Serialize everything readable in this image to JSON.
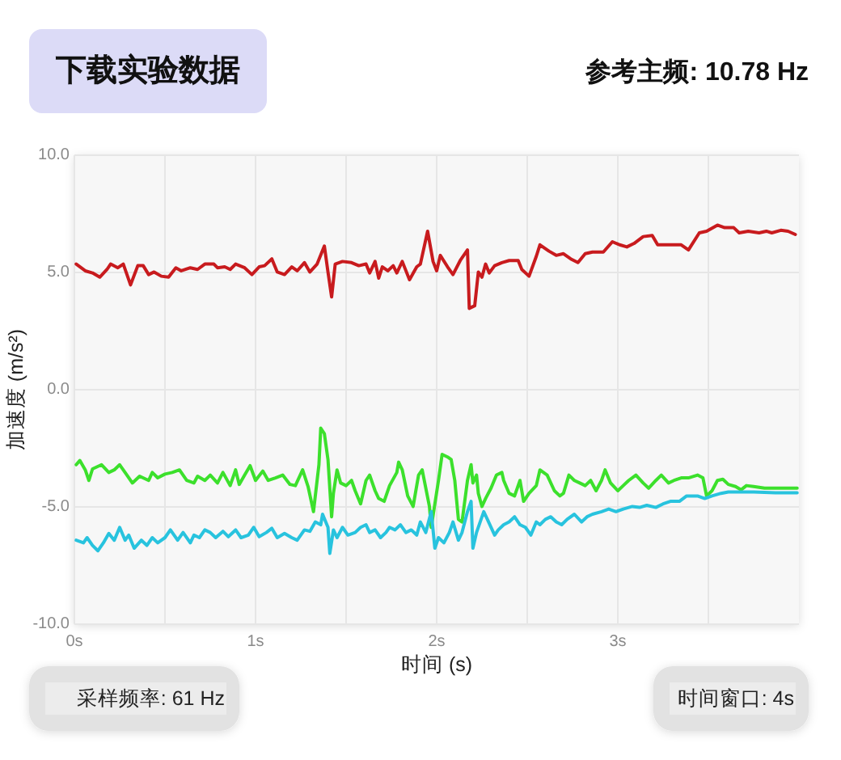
{
  "chart_data": {
    "type": "line",
    "xlabel": "时间 (s)",
    "ylabel": "加速度 (m/s²)",
    "annotations": [
      "下载实验数据",
      "参考主频: 10.78 Hz",
      "采样频率: 61 Hz",
      "时间窗口: 4s"
    ],
    "xlim": [
      0,
      4
    ],
    "xticks": [
      {
        "value": 0,
        "label": "0s"
      },
      {
        "value": 0.5,
        "label": null
      },
      {
        "value": 1,
        "label": "1s"
      },
      {
        "value": 1.5,
        "label": null
      },
      {
        "value": 2,
        "label": "2s"
      },
      {
        "value": 2.5,
        "label": null
      },
      {
        "value": 3,
        "label": "3s"
      },
      {
        "value": 3.5,
        "label": null
      }
    ],
    "ylim": [
      -10,
      10
    ],
    "yticks": [
      {
        "value": -10,
        "label": "-10.0"
      },
      {
        "value": -5,
        "label": "-5.0"
      },
      {
        "value": 0,
        "label": "0.0"
      },
      {
        "value": 5,
        "label": "5.0"
      },
      {
        "value": 10,
        "label": "10.0"
      }
    ],
    "grid": true,
    "marker": "none",
    "line_style": "solid",
    "series": [
      {
        "color": "#c81b1e",
        "x": [
          0.01,
          0.06,
          0.1,
          0.14,
          0.18,
          0.2,
          0.24,
          0.27,
          0.31,
          0.35,
          0.38,
          0.41,
          0.44,
          0.48,
          0.52,
          0.56,
          0.59,
          0.64,
          0.68,
          0.72,
          0.77,
          0.79,
          0.83,
          0.86,
          0.89,
          0.94,
          0.98,
          1.02,
          1.05,
          1.09,
          1.12,
          1.16,
          1.2,
          1.23,
          1.27,
          1.3,
          1.34,
          1.38,
          1.4,
          1.42,
          1.44,
          1.48,
          1.53,
          1.57,
          1.61,
          1.63,
          1.66,
          1.68,
          1.7,
          1.73,
          1.76,
          1.78,
          1.81,
          1.85,
          1.89,
          1.91,
          1.95,
          1.98,
          2.0,
          2.02,
          2.06,
          2.09,
          2.13,
          2.17,
          2.18,
          2.21,
          2.23,
          2.25,
          2.27,
          2.29,
          2.32,
          2.36,
          2.4,
          2.45,
          2.47,
          2.51,
          2.55,
          2.57,
          2.62,
          2.66,
          2.7,
          2.74,
          2.78,
          2.82,
          2.86,
          2.92,
          2.97,
          3.01,
          3.05,
          3.09,
          3.14,
          3.19,
          3.22,
          3.28,
          3.35,
          3.39,
          3.45,
          3.49,
          3.55,
          3.59,
          3.64,
          3.67,
          3.72,
          3.78,
          3.82,
          3.85,
          3.9,
          3.94,
          3.98
        ],
        "values": [
          5.36,
          5.07,
          4.98,
          4.8,
          5.13,
          5.36,
          5.2,
          5.36,
          4.47,
          5.29,
          5.29,
          4.91,
          5.02,
          4.84,
          4.8,
          5.2,
          5.07,
          5.2,
          5.13,
          5.36,
          5.36,
          5.2,
          5.24,
          5.13,
          5.36,
          5.2,
          4.91,
          5.24,
          5.29,
          5.58,
          5.02,
          4.91,
          5.24,
          5.07,
          5.42,
          5.02,
          5.36,
          6.13,
          5.02,
          3.96,
          5.36,
          5.47,
          5.42,
          5.29,
          5.36,
          4.98,
          5.47,
          4.76,
          5.24,
          5.07,
          5.29,
          4.98,
          5.47,
          4.69,
          5.24,
          5.36,
          6.76,
          5.47,
          5.07,
          5.73,
          5.24,
          4.91,
          5.51,
          5.96,
          3.47,
          3.58,
          5.02,
          4.8,
          5.36,
          4.98,
          5.29,
          5.42,
          5.51,
          5.51,
          5.13,
          4.84,
          5.69,
          6.18,
          5.91,
          5.73,
          5.8,
          5.58,
          5.42,
          5.8,
          5.87,
          5.87,
          6.31,
          6.18,
          6.09,
          6.24,
          6.53,
          6.58,
          6.18,
          6.18,
          6.18,
          5.96,
          6.69,
          6.76,
          7.02,
          6.91,
          6.91,
          6.69,
          6.76,
          6.69,
          6.76,
          6.69,
          6.8,
          6.76,
          6.62
        ]
      },
      {
        "color": "#3ce02c",
        "x": [
          0.01,
          0.03,
          0.06,
          0.08,
          0.1,
          0.15,
          0.19,
          0.22,
          0.25,
          0.29,
          0.32,
          0.36,
          0.41,
          0.43,
          0.46,
          0.5,
          0.54,
          0.58,
          0.62,
          0.66,
          0.68,
          0.72,
          0.75,
          0.79,
          0.82,
          0.86,
          0.89,
          0.91,
          0.94,
          0.97,
          1.0,
          1.04,
          1.07,
          1.11,
          1.15,
          1.19,
          1.22,
          1.26,
          1.29,
          1.32,
          1.35,
          1.36,
          1.38,
          1.4,
          1.42,
          1.43,
          1.45,
          1.47,
          1.5,
          1.53,
          1.55,
          1.58,
          1.61,
          1.63,
          1.66,
          1.68,
          1.71,
          1.74,
          1.78,
          1.79,
          1.81,
          1.84,
          1.87,
          1.9,
          1.92,
          1.96,
          1.97,
          2.01,
          2.03,
          2.06,
          2.08,
          2.1,
          2.12,
          2.14,
          2.17,
          2.19,
          2.2,
          2.22,
          2.23,
          2.25,
          2.27,
          2.3,
          2.33,
          2.36,
          2.37,
          2.4,
          2.43,
          2.46,
          2.48,
          2.51,
          2.55,
          2.57,
          2.61,
          2.65,
          2.68,
          2.7,
          2.73,
          2.76,
          2.79,
          2.82,
          2.85,
          2.88,
          2.91,
          2.93,
          2.96,
          3.0,
          3.03,
          3.06,
          3.1,
          3.14,
          3.17,
          3.21,
          3.24,
          3.28,
          3.31,
          3.35,
          3.39,
          3.44,
          3.47,
          3.49,
          3.52,
          3.55,
          3.58,
          3.61,
          3.65,
          3.68,
          3.71,
          3.75,
          3.81,
          3.9,
          3.99
        ],
        "values": [
          -3.2,
          -3.02,
          -3.42,
          -3.87,
          -3.38,
          -3.2,
          -3.53,
          -3.42,
          -3.2,
          -3.64,
          -3.98,
          -3.69,
          -3.87,
          -3.53,
          -3.76,
          -3.6,
          -3.53,
          -3.42,
          -3.87,
          -3.98,
          -3.69,
          -3.87,
          -3.64,
          -3.98,
          -3.53,
          -4.09,
          -3.42,
          -4.04,
          -3.64,
          -3.24,
          -3.87,
          -3.47,
          -3.87,
          -3.76,
          -3.64,
          -4.04,
          -4.09,
          -3.42,
          -4.13,
          -5.2,
          -3.2,
          -1.64,
          -1.87,
          -2.98,
          -5.42,
          -4.42,
          -3.42,
          -3.98,
          -4.09,
          -3.87,
          -4.31,
          -4.87,
          -3.87,
          -3.64,
          -4.31,
          -4.64,
          -4.76,
          -4.09,
          -3.53,
          -3.09,
          -3.42,
          -4.53,
          -4.98,
          -3.64,
          -3.42,
          -4.98,
          -5.87,
          -3.87,
          -2.76,
          -2.87,
          -2.98,
          -3.87,
          -5.53,
          -5.64,
          -3.87,
          -3.2,
          -3.98,
          -3.64,
          -4.42,
          -4.98,
          -4.64,
          -4.2,
          -3.64,
          -3.53,
          -3.87,
          -4.42,
          -4.53,
          -3.87,
          -4.76,
          -4.42,
          -4.09,
          -3.42,
          -3.64,
          -4.31,
          -4.53,
          -4.42,
          -3.64,
          -3.87,
          -3.98,
          -4.09,
          -3.87,
          -4.31,
          -3.87,
          -3.42,
          -3.98,
          -4.31,
          -4.09,
          -3.87,
          -3.64,
          -3.98,
          -4.2,
          -3.87,
          -3.64,
          -3.98,
          -3.87,
          -3.76,
          -3.76,
          -3.64,
          -3.76,
          -4.53,
          -4.31,
          -3.87,
          -3.82,
          -4.04,
          -4.13,
          -4.27,
          -4.09,
          -4.13,
          -4.2,
          -4.2,
          -4.2
        ]
      },
      {
        "color": "#28c3de",
        "x": [
          0.01,
          0.05,
          0.07,
          0.1,
          0.13,
          0.16,
          0.19,
          0.22,
          0.25,
          0.28,
          0.3,
          0.33,
          0.37,
          0.4,
          0.43,
          0.46,
          0.5,
          0.53,
          0.57,
          0.6,
          0.64,
          0.66,
          0.69,
          0.72,
          0.75,
          0.78,
          0.82,
          0.85,
          0.89,
          0.92,
          0.96,
          0.99,
          1.02,
          1.06,
          1.09,
          1.12,
          1.16,
          1.2,
          1.23,
          1.27,
          1.3,
          1.33,
          1.36,
          1.37,
          1.4,
          1.41,
          1.43,
          1.45,
          1.48,
          1.51,
          1.55,
          1.58,
          1.61,
          1.63,
          1.66,
          1.69,
          1.72,
          1.74,
          1.77,
          1.8,
          1.83,
          1.86,
          1.89,
          1.91,
          1.94,
          1.97,
          1.99,
          2.01,
          2.04,
          2.07,
          2.09,
          2.12,
          2.14,
          2.17,
          2.19,
          2.2,
          2.22,
          2.24,
          2.26,
          2.28,
          2.32,
          2.34,
          2.37,
          2.4,
          2.43,
          2.46,
          2.49,
          2.52,
          2.55,
          2.57,
          2.6,
          2.63,
          2.66,
          2.69,
          2.72,
          2.76,
          2.8,
          2.83,
          2.86,
          2.91,
          2.95,
          2.99,
          3.03,
          3.08,
          3.12,
          3.16,
          3.21,
          3.25,
          3.29,
          3.34,
          3.38,
          3.44,
          3.48,
          3.52,
          3.57,
          3.61,
          3.67,
          3.75,
          3.87,
          3.99
        ],
        "values": [
          -6.42,
          -6.53,
          -6.31,
          -6.64,
          -6.87,
          -6.53,
          -6.13,
          -6.42,
          -5.87,
          -6.42,
          -6.2,
          -6.76,
          -6.42,
          -6.64,
          -6.31,
          -6.53,
          -6.31,
          -5.98,
          -6.42,
          -6.09,
          -6.53,
          -6.2,
          -6.31,
          -5.98,
          -6.09,
          -6.31,
          -6.04,
          -6.27,
          -5.98,
          -6.31,
          -6.2,
          -5.87,
          -6.27,
          -6.09,
          -5.91,
          -6.31,
          -6.13,
          -6.31,
          -6.42,
          -5.98,
          -6.04,
          -5.64,
          -5.76,
          -5.31,
          -5.87,
          -6.98,
          -5.98,
          -6.31,
          -5.87,
          -6.2,
          -6.09,
          -5.87,
          -5.76,
          -6.09,
          -5.98,
          -6.31,
          -6.09,
          -5.87,
          -5.98,
          -5.76,
          -6.09,
          -5.98,
          -6.2,
          -5.64,
          -6.09,
          -5.2,
          -6.76,
          -6.31,
          -6.53,
          -6.09,
          -5.64,
          -6.42,
          -6.09,
          -5.2,
          -4.76,
          -6.76,
          -6.09,
          -5.64,
          -5.2,
          -5.53,
          -6.2,
          -5.98,
          -5.76,
          -5.64,
          -5.42,
          -5.76,
          -5.87,
          -6.2,
          -5.64,
          -5.76,
          -5.53,
          -5.42,
          -5.64,
          -5.76,
          -5.53,
          -5.31,
          -5.64,
          -5.42,
          -5.31,
          -5.2,
          -5.09,
          -5.2,
          -5.09,
          -4.98,
          -5.02,
          -4.93,
          -5.02,
          -4.87,
          -4.76,
          -4.76,
          -4.53,
          -4.53,
          -4.64,
          -4.53,
          -4.42,
          -4.36,
          -4.36,
          -4.36,
          -4.4,
          -4.4
        ]
      }
    ]
  }
}
